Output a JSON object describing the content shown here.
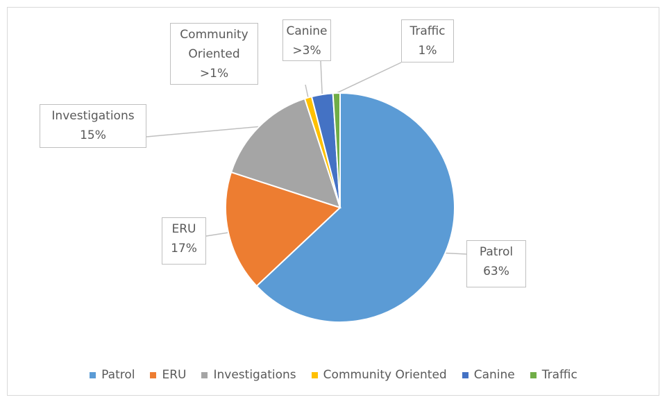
{
  "chart_data": {
    "type": "pie",
    "categories": [
      "Patrol",
      "ERU",
      "Investigations",
      "Community Oriented",
      "Canine",
      "Traffic"
    ],
    "values": [
      63,
      17,
      15,
      1,
      3,
      1
    ],
    "value_labels": [
      "63%",
      "17%",
      "15%",
      ">1%",
      ">3%",
      "1%"
    ],
    "colors": [
      "#5b9bd5",
      "#ed7d31",
      "#a5a5a5",
      "#ffc000",
      "#4472c4",
      "#70ad47"
    ],
    "legend": "bottom"
  }
}
